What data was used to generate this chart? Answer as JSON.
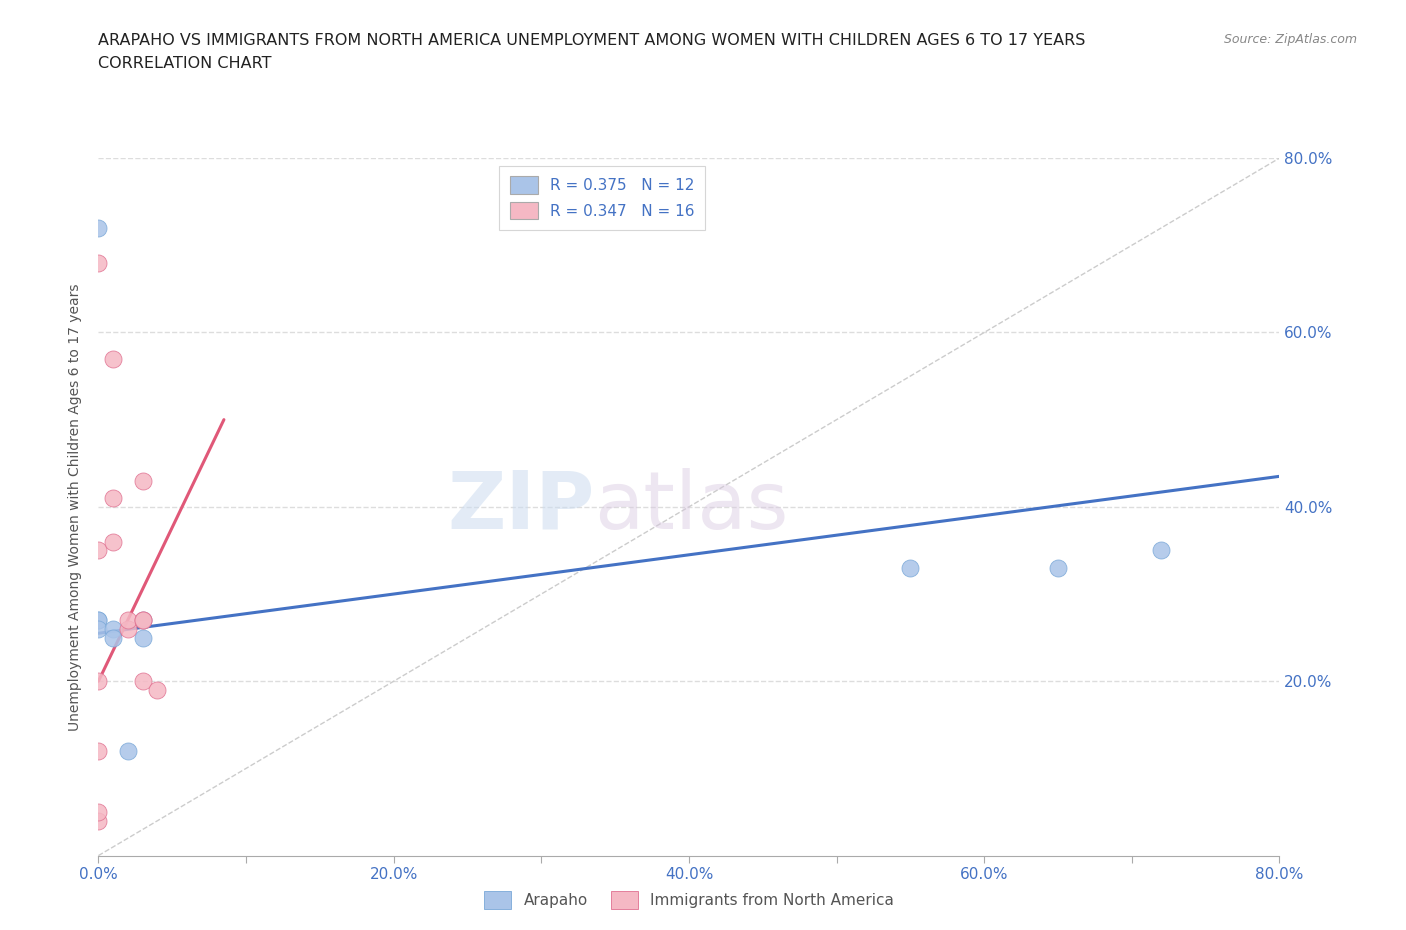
{
  "title_line1": "ARAPAHO VS IMMIGRANTS FROM NORTH AMERICA UNEMPLOYMENT AMONG WOMEN WITH CHILDREN AGES 6 TO 17 YEARS",
  "title_line2": "CORRELATION CHART",
  "source_text": "Source: ZipAtlas.com",
  "ylabel": "Unemployment Among Women with Children Ages 6 to 17 years",
  "xlim": [
    0,
    0.8
  ],
  "ylim": [
    0,
    0.8
  ],
  "xtick_labels": [
    "0.0%",
    "",
    "20.0%",
    "",
    "40.0%",
    "",
    "60.0%",
    "",
    "80.0%"
  ],
  "xtick_values": [
    0.0,
    0.1,
    0.2,
    0.3,
    0.4,
    0.5,
    0.6,
    0.7,
    0.8
  ],
  "ytick_labels": [
    "20.0%",
    "40.0%",
    "60.0%",
    "80.0%"
  ],
  "ytick_values": [
    0.2,
    0.4,
    0.6,
    0.8
  ],
  "watermark_zip": "ZIP",
  "watermark_atlas": "atlas",
  "legend_entries": [
    {
      "label": "R = 0.375   N = 12",
      "color": "#aac4e8"
    },
    {
      "label": "R = 0.347   N = 16",
      "color": "#f5b8c4"
    }
  ],
  "blue_scatter": {
    "x": [
      0.0,
      0.0,
      0.0,
      0.0,
      0.01,
      0.01,
      0.02,
      0.03,
      0.03,
      0.55,
      0.65,
      0.72
    ],
    "y": [
      0.72,
      0.27,
      0.27,
      0.26,
      0.26,
      0.25,
      0.12,
      0.27,
      0.25,
      0.33,
      0.33,
      0.35
    ],
    "color": "#aac4e8",
    "edgecolor": "#7aa8d8",
    "size": 150,
    "alpha": 0.85
  },
  "pink_scatter": {
    "x": [
      0.0,
      0.0,
      0.0,
      0.0,
      0.0,
      0.0,
      0.01,
      0.01,
      0.01,
      0.02,
      0.02,
      0.03,
      0.03,
      0.03,
      0.03,
      0.04
    ],
    "y": [
      0.04,
      0.05,
      0.12,
      0.2,
      0.35,
      0.68,
      0.36,
      0.41,
      0.57,
      0.26,
      0.27,
      0.2,
      0.27,
      0.27,
      0.43,
      0.19
    ],
    "color": "#f5b8c4",
    "edgecolor": "#e07090",
    "size": 150,
    "alpha": 0.85
  },
  "blue_regression": {
    "x_start": 0.0,
    "x_end": 0.8,
    "y_start": 0.255,
    "y_end": 0.435,
    "color": "#4472c4",
    "linewidth": 2.2
  },
  "pink_regression": {
    "x_start": 0.0,
    "x_end": 0.085,
    "y_start": 0.2,
    "y_end": 0.5,
    "color": "#e05878",
    "linewidth": 2.2
  },
  "diagonal_line": {
    "color": "#cccccc",
    "linewidth": 1.0,
    "linestyle": "--"
  },
  "background_color": "#ffffff",
  "grid_color": "#dddddd",
  "title_fontsize": 11.5,
  "subtitle_fontsize": 11.5,
  "axis_label_fontsize": 10,
  "tick_fontsize": 11,
  "legend_fontsize": 11,
  "source_fontsize": 9
}
